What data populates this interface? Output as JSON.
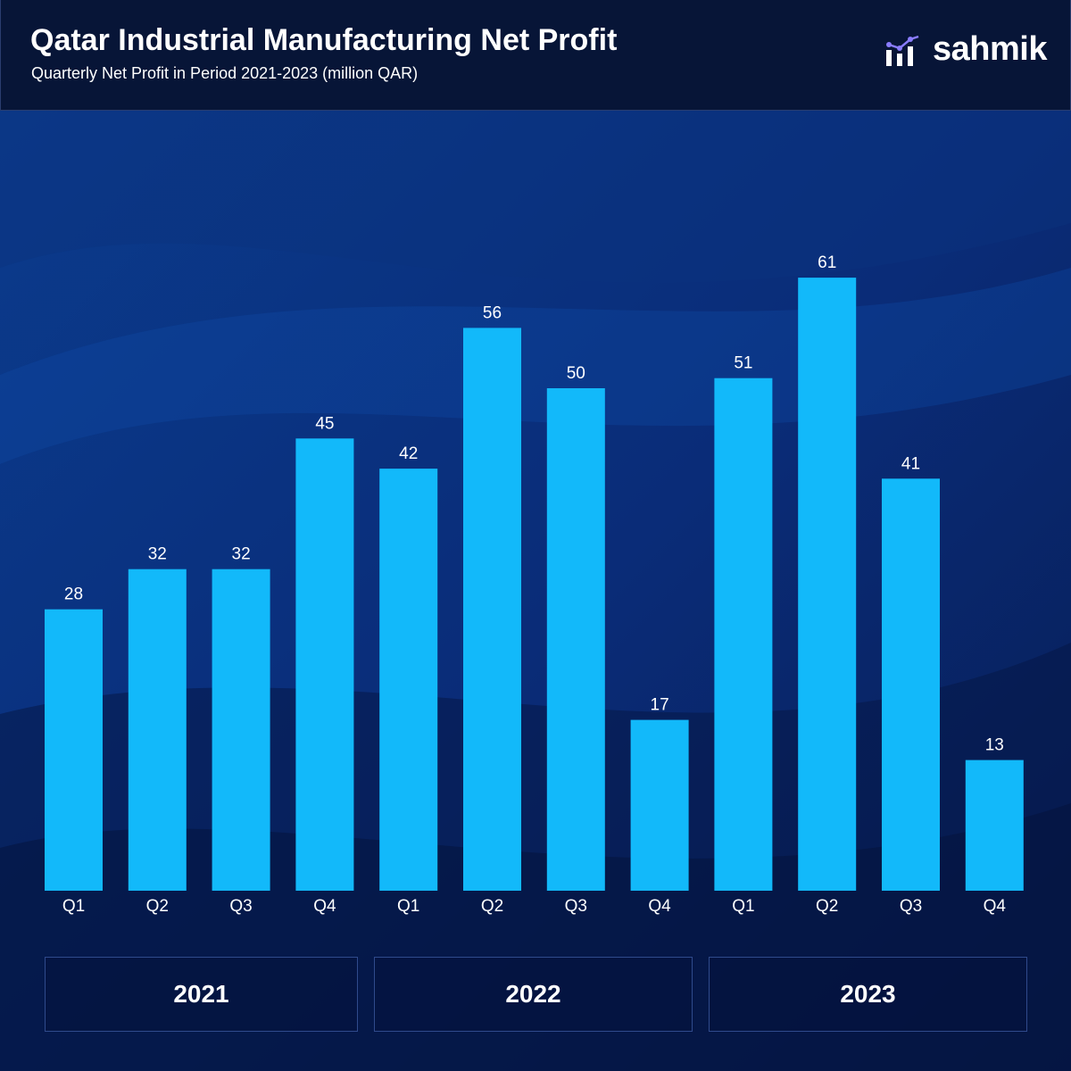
{
  "header": {
    "title": "Qatar Industrial Manufacturing Net Profit",
    "subtitle": "Quarterly Net Profit in Period 2021-2023 (million QAR)",
    "brand": "sahmik",
    "brand_icon": "bar-chart-logo-icon"
  },
  "colors": {
    "bar": "#12b9fa",
    "background": "#061a4e",
    "header": "#071537",
    "text": "#ffffff",
    "logo_accent": "#8a7cff"
  },
  "chart_data": {
    "type": "bar",
    "title": "Qatar Industrial Manufacturing Net Profit",
    "subtitle": "Quarterly Net Profit in Period 2021-2023 (million QAR)",
    "xlabel": "",
    "ylabel": "",
    "categories": [
      "Q1",
      "Q2",
      "Q3",
      "Q4",
      "Q1",
      "Q2",
      "Q3",
      "Q4",
      "Q1",
      "Q2",
      "Q3",
      "Q4"
    ],
    "groups": [
      {
        "label": "2021",
        "quarters": [
          "Q1",
          "Q2",
          "Q3",
          "Q4"
        ]
      },
      {
        "label": "2022",
        "quarters": [
          "Q1",
          "Q2",
          "Q3",
          "Q4"
        ]
      },
      {
        "label": "2023",
        "quarters": [
          "Q1",
          "Q2",
          "Q3",
          "Q4"
        ]
      }
    ],
    "values": [
      28,
      32,
      32,
      45,
      42,
      56,
      50,
      17,
      51,
      61,
      41,
      13
    ],
    "ylim": [
      0,
      61
    ],
    "grid": false,
    "data_labels": true,
    "legend": "none"
  }
}
